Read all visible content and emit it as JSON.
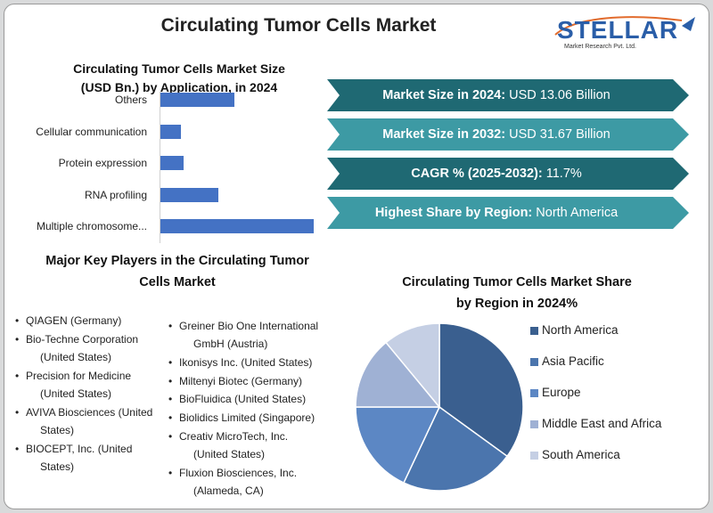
{
  "title": "Circulating Tumor Cells Market",
  "logo": {
    "text": "STELLAR",
    "subtitle": "Market Research Pvt. Ltd."
  },
  "bar_chart_title_1": "Circulating Tumor Cells Market Size",
  "bar_chart_title_2": "(USD Bn.) by Application, in 2024",
  "banners": [
    {
      "label": "Market Size in 2024:",
      "value": " USD 13.06 Billion",
      "color": "#1f6973"
    },
    {
      "label": "Market Size in 2032:",
      "value": " USD 31.67 Billion",
      "color": "#3d9aa4"
    },
    {
      "label": "CAGR % (2025-2032):",
      "value": " 11.7%",
      "color": "#1f6973"
    },
    {
      "label": "Highest Share by Region:",
      "value": " North America",
      "color": "#3d9aa4"
    }
  ],
  "players_title_1": "Major Key Players in the Circulating Tumor",
  "players_title_2": "Cells Market",
  "players_left": [
    {
      "l1": "QIAGEN (Germany)",
      "l2": ""
    },
    {
      "l1": "Bio-Techne Corporation",
      "l2": "(United States)"
    },
    {
      "l1": "Precision for Medicine",
      "l2": "(United States)"
    },
    {
      "l1": "AVIVA Biosciences (United",
      "l2": "States)"
    },
    {
      "l1": "BIOCEPT, Inc. (United",
      "l2": "States)"
    }
  ],
  "players_right": [
    {
      "l1": "Greiner Bio One International",
      "l2": "GmbH (Austria)"
    },
    {
      "l1": "Ikonisys Inc. (United States)",
      "l2": ""
    },
    {
      "l1": "Miltenyi Biotec (Germany)",
      "l2": ""
    },
    {
      "l1": "BioFluidica (United States)",
      "l2": ""
    },
    {
      "l1": "Biolidics Limited (Singapore)",
      "l2": ""
    },
    {
      "l1": "Creativ MicroTech, Inc.",
      "l2": "(United States)"
    },
    {
      "l1": "Fluxion Biosciences, Inc.",
      "l2": "(Alameda, CA)"
    }
  ],
  "pie_title_1": "Circulating Tumor Cells Market Share",
  "pie_title_2": "by Region in 2024%",
  "bullet": "•",
  "chart_data": [
    {
      "type": "bar",
      "orientation": "horizontal",
      "title": "Circulating Tumor Cells Market Size (USD Bn.) by Application, in 2024",
      "categories": [
        "Others",
        "Cellular communication",
        "Protein expression",
        "RNA profiling",
        "Multiple chromosome..."
      ],
      "values": [
        1.6,
        0.45,
        0.5,
        1.25,
        3.3
      ],
      "xlim": [
        0,
        3.3
      ],
      "color": "#4472c4",
      "grid": false
    },
    {
      "type": "pie",
      "title": "Circulating Tumor Cells Market Share by Region in 2024%",
      "labels": [
        "North America",
        "Asia Pacific",
        "Europe",
        "Middle East and Africa",
        "South America"
      ],
      "values": [
        35,
        22,
        18,
        14,
        11
      ],
      "colors": [
        "#3a5f8f",
        "#4b75ad",
        "#5c87c4",
        "#9fb1d4",
        "#c5cfe4"
      ],
      "legend": "right"
    }
  ]
}
